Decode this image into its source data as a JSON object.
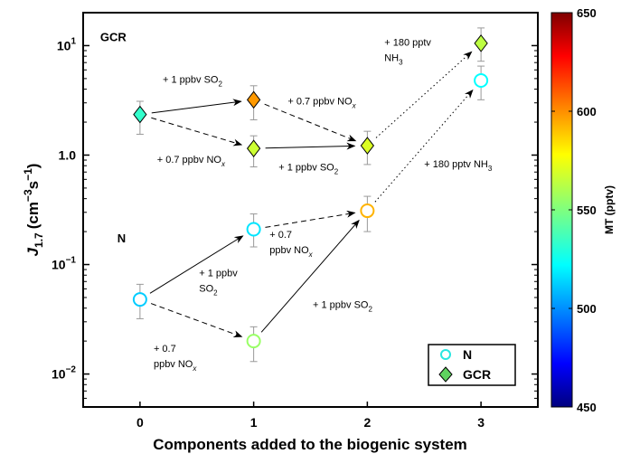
{
  "chart_data": {
    "type": "scatter",
    "title": "",
    "xlabel": "Components added to the biogenic system",
    "ylabel": {
      "main": "J",
      "sub": "1.7",
      "unit": "(cm",
      "unit_sup1": "−3",
      "unit_mid": "s",
      "unit_sup2": "−1",
      "unit_end": ")"
    },
    "xlim": [
      -0.5,
      3.5
    ],
    "ylim": [
      0.005,
      20
    ],
    "yscale": "log",
    "x_ticks": [
      "0",
      "1",
      "2",
      "3"
    ],
    "y_ticks": [
      {
        "value": 0.01,
        "base": "10",
        "exp": "−2"
      },
      {
        "value": 0.1,
        "base": "10",
        "exp": "−1"
      },
      {
        "value": 1,
        "label": "10",
        "exp": "0",
        "alt": "1.0"
      },
      {
        "value": 10,
        "base": "10",
        "exp": "1"
      }
    ],
    "panel_labels": [
      {
        "text": "GCR",
        "x": -0.35,
        "y": 11
      },
      {
        "text": "N",
        "x": -0.2,
        "y": 0.16
      }
    ],
    "series": [
      {
        "name": "N",
        "marker": "circle",
        "points": [
          {
            "x": 0,
            "y": 0.048,
            "lo": 0.032,
            "hi": 0.066,
            "mt": 515
          },
          {
            "x": 1,
            "y": 0.21,
            "lo": 0.145,
            "hi": 0.29,
            "mt": 520
          },
          {
            "x": 1,
            "y": 0.02,
            "lo": 0.013,
            "hi": 0.027,
            "mt": 555
          },
          {
            "x": 2,
            "y": 0.31,
            "lo": 0.2,
            "hi": 0.42,
            "mt": 590
          },
          {
            "x": 3,
            "y": 4.8,
            "lo": 3.2,
            "hi": 6.5,
            "mt": 525
          }
        ]
      },
      {
        "name": "GCR",
        "marker": "diamond",
        "points": [
          {
            "x": 0,
            "y": 2.35,
            "lo": 1.55,
            "hi": 3.1,
            "mt": 535
          },
          {
            "x": 1,
            "y": 3.2,
            "lo": 2.1,
            "hi": 4.3,
            "mt": 595
          },
          {
            "x": 1,
            "y": 1.15,
            "lo": 0.78,
            "hi": 1.5,
            "mt": 565
          },
          {
            "x": 2,
            "y": 1.22,
            "lo": 0.82,
            "hi": 1.65,
            "mt": 568
          },
          {
            "x": 3,
            "y": 10.5,
            "lo": 7.2,
            "hi": 14.5,
            "mt": 562
          }
        ]
      }
    ],
    "arrows": [
      {
        "from": [
          0,
          2.35
        ],
        "to": [
          1,
          3.2
        ],
        "style": "solid"
      },
      {
        "from": [
          0,
          2.35
        ],
        "to": [
          1,
          1.15
        ],
        "style": "dashed"
      },
      {
        "from": [
          1,
          3.2
        ],
        "to": [
          2,
          1.22
        ],
        "style": "dashed"
      },
      {
        "from": [
          1,
          1.15
        ],
        "to": [
          2,
          1.22
        ],
        "style": "solid"
      },
      {
        "from": [
          2,
          1.22
        ],
        "to": [
          3,
          10.5
        ],
        "style": "dotted"
      },
      {
        "from": [
          0,
          0.048
        ],
        "to": [
          1,
          0.21
        ],
        "style": "solid"
      },
      {
        "from": [
          0,
          0.048
        ],
        "to": [
          1,
          0.02
        ],
        "style": "dashed"
      },
      {
        "from": [
          1,
          0.21
        ],
        "to": [
          2,
          0.31
        ],
        "style": "dashed"
      },
      {
        "from": [
          1,
          0.02
        ],
        "to": [
          2,
          0.31
        ],
        "style": "solid"
      },
      {
        "from": [
          2,
          0.31
        ],
        "to": [
          3,
          4.8
        ],
        "style": "dotted"
      }
    ],
    "annotations": [
      {
        "lines": [
          [
            "+ 1 ppbv SO",
            "2",
            ""
          ]
        ],
        "x": 0.2,
        "y": 4.6
      },
      {
        "lines": [
          [
            "+ 0.7 ppbv NO",
            "",
            "x"
          ]
        ],
        "x": 1.3,
        "y": 2.9
      },
      {
        "lines": [
          [
            "+ 0.7 ppbv NO",
            "",
            "x"
          ]
        ],
        "x": 0.15,
        "y": 0.85
      },
      {
        "lines": [
          [
            "+ 1 ppbv SO",
            "2",
            ""
          ]
        ],
        "x": 1.22,
        "y": 0.72
      },
      {
        "lines": [
          [
            "+ 180 pptv",
            "",
            ""
          ],
          [
            "NH",
            "3",
            ""
          ]
        ],
        "x": 2.15,
        "y": 10.0
      },
      {
        "lines": [
          [
            "+ 180 pptv NH",
            "3",
            ""
          ]
        ],
        "x": 2.5,
        "y": 0.77
      },
      {
        "lines": [
          [
            "+ 0.7",
            "",
            ""
          ],
          [
            "ppbv NO",
            "",
            "x"
          ]
        ],
        "x": 1.14,
        "y": 0.175
      },
      {
        "lines": [
          [
            "+ 1 ppbv",
            "",
            ""
          ],
          [
            "SO",
            "2",
            ""
          ]
        ],
        "x": 0.52,
        "y": 0.078
      },
      {
        "lines": [
          [
            "+ 1 ppbv SO",
            "2",
            ""
          ]
        ],
        "x": 1.52,
        "y": 0.04
      },
      {
        "lines": [
          [
            "+ 0.7",
            "",
            ""
          ],
          [
            "ppbv NO",
            "",
            "x"
          ]
        ],
        "x": 0.12,
        "y": 0.016
      }
    ],
    "legend": {
      "placement": "bottom-right",
      "entries": [
        "N",
        "GCR"
      ]
    },
    "colorbar": {
      "label": "MT (pptv)",
      "range": [
        450,
        650
      ],
      "ticks": [
        "450",
        "500",
        "550",
        "600",
        "650"
      ],
      "colormap": "jet"
    },
    "colors": {
      "error_bar": "#999999",
      "arrow": "#000000",
      "n_marker_edge": "from colormap",
      "gcr_marker_edge": "#000000"
    }
  }
}
